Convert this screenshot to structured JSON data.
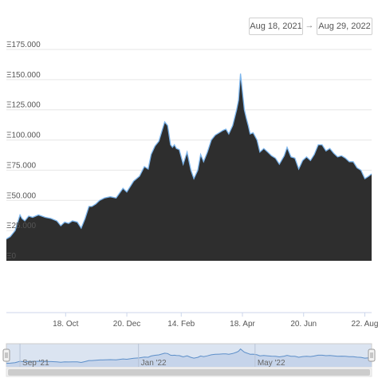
{
  "date_range": {
    "from": "Aug 18, 2021",
    "arrow": "→",
    "to": "Aug 29, 2022"
  },
  "colors": {
    "fill": "#2e2e2e",
    "line": "#7cb5ec",
    "navigator_fill": "#dbe4f1",
    "navigator_line": "#5d8fc9"
  },
  "chart_data": {
    "type": "area",
    "title": "",
    "xlabel": "",
    "ylabel": "",
    "currency_symbol": "Ξ",
    "ylim": [
      0,
      175000
    ],
    "y_ticks": [
      "Ξ175.000",
      "Ξ150.000",
      "Ξ125.000",
      "Ξ100.000",
      "Ξ75.000",
      "Ξ50.000",
      "Ξ25.000",
      "Ξ0"
    ],
    "x_ticks": [
      "18. Oct",
      "20. Dec",
      "14. Feb",
      "18. Apr",
      "20. Jun",
      "22. Aug"
    ],
    "navigator_ticks": [
      "Sep '21",
      "Jan '22",
      "May '22"
    ],
    "grid": true,
    "legend": "none",
    "x": [
      "2021-08-18",
      "2021-08-22",
      "2021-08-27",
      "2021-09-01",
      "2021-09-03",
      "2021-09-06",
      "2021-09-10",
      "2021-09-14",
      "2021-09-20",
      "2021-09-27",
      "2021-10-03",
      "2021-10-09",
      "2021-10-13",
      "2021-10-17",
      "2021-10-21",
      "2021-10-25",
      "2021-10-30",
      "2021-11-03",
      "2021-11-07",
      "2021-11-11",
      "2021-11-14",
      "2021-11-18",
      "2021-11-22",
      "2021-11-27",
      "2021-12-03",
      "2021-12-09",
      "2021-12-16",
      "2021-12-20",
      "2021-12-27",
      "2022-01-02",
      "2022-01-07",
      "2022-01-11",
      "2022-01-14",
      "2022-01-18",
      "2022-01-22",
      "2022-01-28",
      "2022-01-31",
      "2022-02-03",
      "2022-02-05",
      "2022-02-07",
      "2022-02-09",
      "2022-02-12",
      "2022-02-16",
      "2022-02-20",
      "2022-02-24",
      "2022-02-27",
      "2022-03-03",
      "2022-03-06",
      "2022-03-09",
      "2022-03-13",
      "2022-03-17",
      "2022-03-21",
      "2022-03-25",
      "2022-03-29",
      "2022-04-01",
      "2022-04-04",
      "2022-04-08",
      "2022-04-12",
      "2022-04-14",
      "2022-04-16",
      "2022-04-18",
      "2022-04-20",
      "2022-04-22",
      "2022-04-24",
      "2022-04-26",
      "2022-04-29",
      "2022-05-03",
      "2022-05-06",
      "2022-05-10",
      "2022-05-14",
      "2022-05-18",
      "2022-05-22",
      "2022-05-26",
      "2022-05-31",
      "2022-06-03",
      "2022-06-07",
      "2022-06-11",
      "2022-06-15",
      "2022-06-19",
      "2022-06-23",
      "2022-06-27",
      "2022-07-01",
      "2022-07-05",
      "2022-07-09",
      "2022-07-13",
      "2022-07-17",
      "2022-07-21",
      "2022-07-25",
      "2022-07-29",
      "2022-08-02",
      "2022-08-06",
      "2022-08-10",
      "2022-08-14",
      "2022-08-18",
      "2022-08-22",
      "2022-08-26",
      "2022-08-29"
    ],
    "values": [
      18000,
      20000,
      25000,
      38000,
      35000,
      33000,
      37000,
      36000,
      38000,
      36000,
      35000,
      33000,
      29000,
      32000,
      31000,
      33000,
      32000,
      27000,
      35000,
      45000,
      45000,
      47000,
      50000,
      52000,
      53000,
      52000,
      60000,
      57000,
      66000,
      70000,
      78000,
      76000,
      88000,
      95000,
      99000,
      115000,
      112000,
      96000,
      94000,
      96000,
      93000,
      92000,
      80000,
      90000,
      75000,
      68000,
      75000,
      88000,
      82000,
      90000,
      100000,
      104000,
      106000,
      108000,
      109000,
      105000,
      112000,
      125000,
      133000,
      155000,
      140000,
      125000,
      118000,
      112000,
      105000,
      106000,
      100000,
      90000,
      93000,
      90000,
      87000,
      85000,
      80000,
      87000,
      94000,
      86000,
      85000,
      76000,
      83000,
      86000,
      83000,
      88000,
      96000,
      96000,
      91000,
      93000,
      89000,
      86000,
      87000,
      85000,
      82000,
      82000,
      77000,
      75000,
      68000,
      70000,
      72000
    ]
  }
}
